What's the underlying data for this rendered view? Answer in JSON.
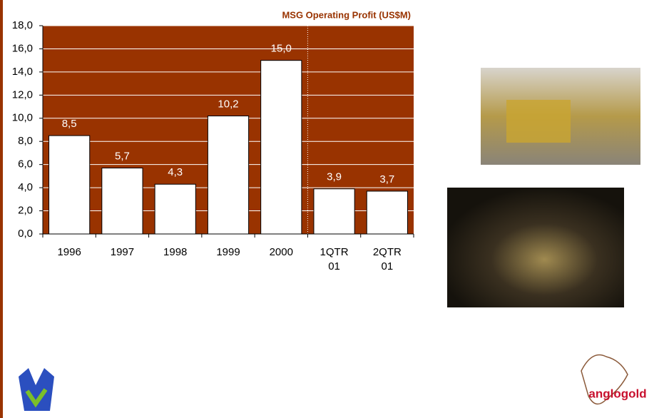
{
  "chart_data": {
    "type": "bar",
    "title": "MSG Operating Profit (US$M)",
    "categories": [
      "1996",
      "1997",
      "1998",
      "1999",
      "2000",
      "1QTR 01",
      "2QTR 01"
    ],
    "values": [
      8.5,
      5.7,
      4.3,
      10.2,
      15.0,
      3.9,
      3.7
    ],
    "value_labels": [
      "8,5",
      "5,7",
      "4,3",
      "10,2",
      "15,0",
      "3,9",
      "3,7"
    ],
    "color": "#ffffff",
    "background": "#993300",
    "ylim": [
      0,
      18
    ],
    "yticks": [
      {
        "value": 0,
        "label": "0,0"
      },
      {
        "value": 2,
        "label": "2,0"
      },
      {
        "value": 4,
        "label": "4,0"
      },
      {
        "value": 6,
        "label": "6,0"
      },
      {
        "value": 8,
        "label": "8,0"
      },
      {
        "value": 10,
        "label": "10,0"
      },
      {
        "value": 12,
        "label": "12,0"
      },
      {
        "value": 14,
        "label": "14,0"
      },
      {
        "value": 16,
        "label": "16,0"
      },
      {
        "value": 18,
        "label": "18,0"
      }
    ],
    "grid": true
  },
  "logo": {
    "brand": "anglogold"
  }
}
